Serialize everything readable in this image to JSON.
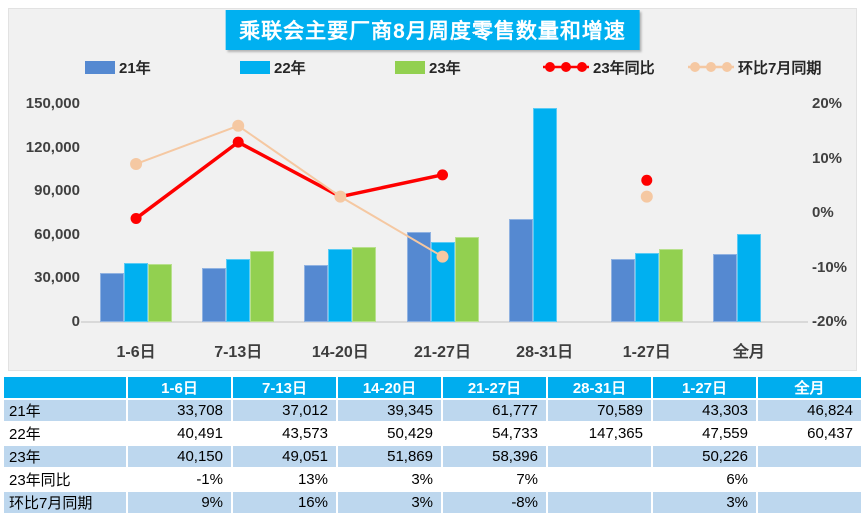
{
  "title": "乘联会主要厂商8月周度零售数量和增速",
  "colors": {
    "title_bg": "#00b0f0",
    "panel_bg": "#f1f1f1",
    "series_21": "#5589d1",
    "series_22": "#00b0f0",
    "series_23": "#92d050",
    "line_yoy": "#fe0000",
    "line_mom": "#f5c8a2",
    "table_header_bg": "#00adee",
    "table_stripe_bg": "#bdd7ee",
    "axis_text": "#404040"
  },
  "chart_data": {
    "type": "combo",
    "title": "乘联会主要厂商8月周度零售数量和增速",
    "grid": false,
    "legend_position": "top",
    "categories": [
      "1-6日",
      "7-13日",
      "14-20日",
      "21-27日",
      "28-31日",
      "1-27日",
      "全月"
    ],
    "bar_series": [
      {
        "name": "21年",
        "color": "#5589d1",
        "values": [
          33708,
          37012,
          39345,
          61777,
          70589,
          43303,
          46824
        ]
      },
      {
        "name": "22年",
        "color": "#00b0f0",
        "values": [
          40491,
          43573,
          50429,
          54733,
          147365,
          47559,
          60437
        ]
      },
      {
        "name": "23年",
        "color": "#92d050",
        "values": [
          40150,
          49051,
          51869,
          58396,
          null,
          50226,
          null
        ]
      }
    ],
    "line_series": [
      {
        "name": "23年同比",
        "color": "#fe0000",
        "stroke_width": 3.5,
        "dot_radius": 5.5,
        "values_pct": [
          -1,
          13,
          3,
          7,
          null,
          6,
          null
        ],
        "connected_count": 4
      },
      {
        "name": "环比7月同期",
        "color": "#f5c8a2",
        "stroke_width": 2,
        "dot_radius": 6,
        "values_pct": [
          9,
          16,
          3,
          -8,
          null,
          3,
          null
        ],
        "connected_count": 4
      }
    ],
    "y_left": {
      "min": 0,
      "max": 150000,
      "ticks": [
        {
          "value": 150000,
          "label": "150,000"
        },
        {
          "value": 120000,
          "label": "120,000"
        },
        {
          "value": 90000,
          "label": "90,000"
        },
        {
          "value": 60000,
          "label": "60,000"
        },
        {
          "value": 30000,
          "label": "30,000"
        },
        {
          "value": 0,
          "label": "0"
        }
      ]
    },
    "y_right": {
      "min": -20,
      "max": 20,
      "ticks": [
        {
          "value": 20,
          "label": "20%"
        },
        {
          "value": 10,
          "label": "10%"
        },
        {
          "value": 0,
          "label": "0%"
        },
        {
          "value": -10,
          "label": "-10%"
        },
        {
          "value": -20,
          "label": "-20%"
        }
      ]
    }
  },
  "table": {
    "header": [
      "",
      "1-6日",
      "7-13日",
      "14-20日",
      "21-27日",
      "28-31日",
      "1-27日",
      "全月"
    ],
    "rows": [
      {
        "label": "21年",
        "values": [
          "33,708",
          "37,012",
          "39,345",
          "61,777",
          "70,589",
          "43,303",
          "46,824"
        ]
      },
      {
        "label": "22年",
        "values": [
          "40,491",
          "43,573",
          "50,429",
          "54,733",
          "147,365",
          "47,559",
          "60,437"
        ]
      },
      {
        "label": "23年",
        "values": [
          "40,150",
          "49,051",
          "51,869",
          "58,396",
          "",
          "50,226",
          ""
        ]
      },
      {
        "label": "23年同比",
        "values": [
          "-1%",
          "13%",
          "3%",
          "7%",
          "",
          "6%",
          ""
        ]
      },
      {
        "label": "环比7月同期",
        "values": [
          "9%",
          "16%",
          "3%",
          "-8%",
          "",
          "3%",
          ""
        ]
      }
    ]
  }
}
